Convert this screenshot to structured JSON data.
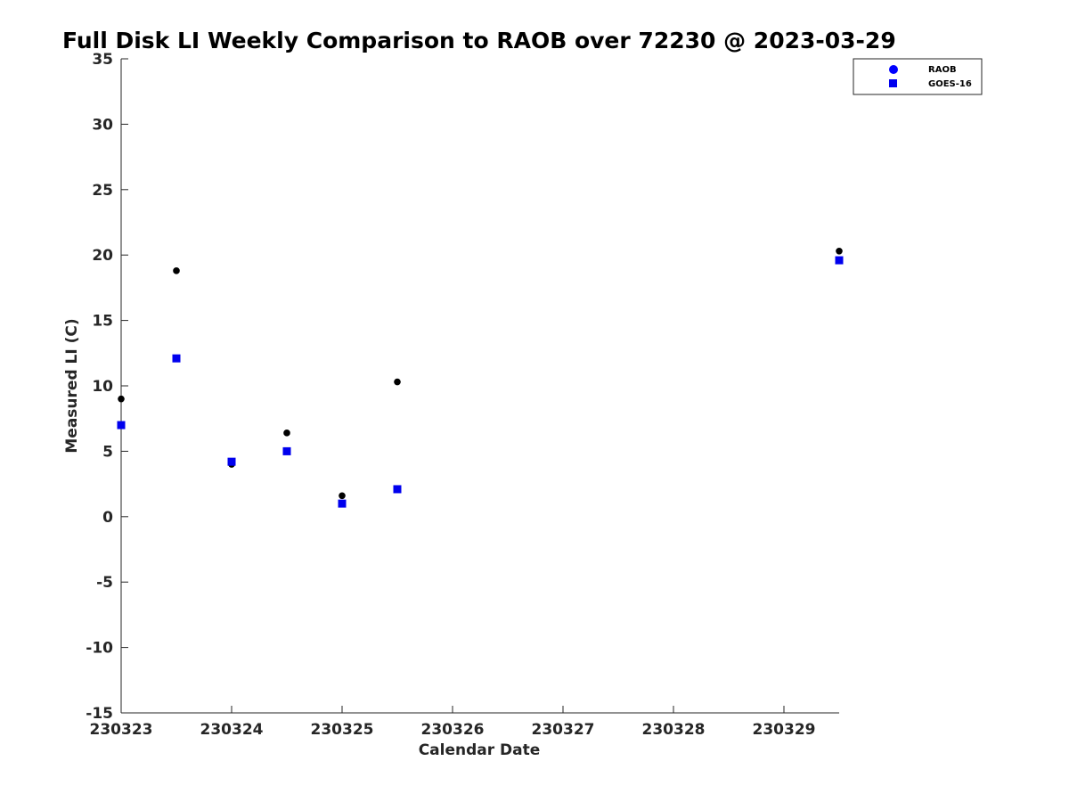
{
  "chart_data": {
    "type": "scatter",
    "title": "Full Disk LI Weekly Comparison to RAOB over 72230 @ 2023-03-29",
    "xlabel": "Calendar Date",
    "ylabel": "Measured LI (C)",
    "x_tick_labels": [
      "230323",
      "230324",
      "230325",
      "230326",
      "230327",
      "230328",
      "230329"
    ],
    "x_ticks": [
      0,
      1,
      2,
      3,
      4,
      5,
      6
    ],
    "xlim": [
      0,
      6.5
    ],
    "ylim": [
      -15,
      35
    ],
    "y_ticks": [
      35,
      30,
      25,
      20,
      15,
      10,
      5,
      0,
      -5,
      -10,
      -15
    ],
    "grid": false,
    "legend_position": "top-right",
    "series": [
      {
        "name": "RAOB",
        "marker": "circle",
        "color": "#000000",
        "legend_color": "#0000ff",
        "points": [
          {
            "x": 0.0,
            "y": 9.0
          },
          {
            "x": 0.5,
            "y": 18.8
          },
          {
            "x": 1.0,
            "y": 4.0
          },
          {
            "x": 1.5,
            "y": 6.4
          },
          {
            "x": 2.0,
            "y": 1.6
          },
          {
            "x": 2.5,
            "y": 10.3
          },
          {
            "x": 6.5,
            "y": 20.3
          }
        ]
      },
      {
        "name": "GOES-16",
        "marker": "square",
        "color": "#0000ee",
        "legend_color": "#0000ee",
        "points": [
          {
            "x": 0.0,
            "y": 7.0
          },
          {
            "x": 0.5,
            "y": 12.1
          },
          {
            "x": 1.0,
            "y": 4.2
          },
          {
            "x": 1.5,
            "y": 5.0
          },
          {
            "x": 2.0,
            "y": 1.0
          },
          {
            "x": 2.5,
            "y": 2.1
          },
          {
            "x": 6.5,
            "y": 19.6
          }
        ]
      }
    ]
  }
}
